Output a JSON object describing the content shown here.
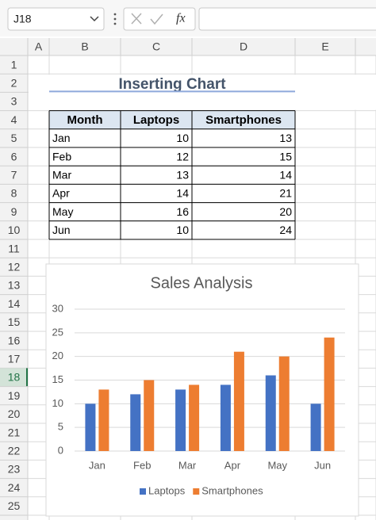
{
  "name_box": "J18",
  "formula_bar": {
    "function_label": "fx"
  },
  "column_headers": [
    "A",
    "B",
    "C",
    "D",
    "E"
  ],
  "row_headers": [
    "1",
    "2",
    "3",
    "4",
    "5",
    "6",
    "7",
    "8",
    "9",
    "10",
    "11",
    "12",
    "13",
    "14",
    "15",
    "16",
    "17",
    "18",
    "19",
    "20",
    "21",
    "22",
    "23",
    "24",
    "25"
  ],
  "sheet_title": "Inserting Chart",
  "table": {
    "header": [
      "Month",
      "Laptops",
      "Smartphones"
    ],
    "rows": [
      [
        "Jan",
        10,
        13
      ],
      [
        "Feb",
        12,
        15
      ],
      [
        "Mar",
        13,
        14
      ],
      [
        "Apr",
        14,
        21
      ],
      [
        "May",
        16,
        20
      ],
      [
        "Jun",
        10,
        24
      ]
    ]
  },
  "chart_data": {
    "type": "bar",
    "title": "Sales Analysis",
    "categories": [
      "Jan",
      "Feb",
      "Mar",
      "Apr",
      "May",
      "Jun"
    ],
    "series": [
      {
        "name": "Laptops",
        "color": "#4472c4",
        "values": [
          10,
          12,
          13,
          14,
          16,
          10
        ]
      },
      {
        "name": "Smartphones",
        "color": "#ed7d31",
        "values": [
          13,
          15,
          14,
          21,
          20,
          24
        ]
      }
    ],
    "ylim": [
      0,
      30
    ],
    "yticks": [
      0,
      5,
      10,
      15,
      20,
      25,
      30
    ],
    "grid": true,
    "legend": "bottom"
  }
}
